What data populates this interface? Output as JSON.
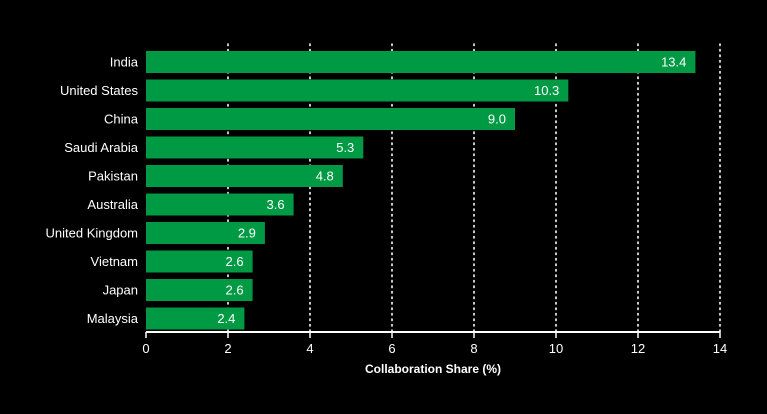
{
  "chart_data": {
    "type": "bar",
    "orientation": "horizontal",
    "categories": [
      "India",
      "United States",
      "China",
      "Saudi Arabia",
      "Pakistan",
      "Australia",
      "United Kingdom",
      "Vietnam",
      "Japan",
      "Malaysia"
    ],
    "values": [
      13.4,
      10.3,
      9.0,
      5.3,
      4.8,
      3.6,
      2.9,
      2.6,
      2.6,
      2.4
    ],
    "value_labels": [
      "13.4",
      "10.3",
      "9.0",
      "5.3",
      "4.8",
      "3.6",
      "2.9",
      "2.6",
      "2.6",
      "2.4"
    ],
    "xlabel": "Collaboration Share (%)",
    "xlim": [
      0,
      14
    ],
    "xticks": [
      0,
      2,
      4,
      6,
      8,
      10,
      12,
      14
    ],
    "xtick_labels": [
      "0",
      "2",
      "4",
      "6",
      "8",
      "10",
      "12",
      "14"
    ],
    "grid": "vertical dotted",
    "colors": {
      "background": "#000000",
      "bar": "#009a44",
      "text": "#ffffff",
      "grid": "#ffffff"
    }
  }
}
